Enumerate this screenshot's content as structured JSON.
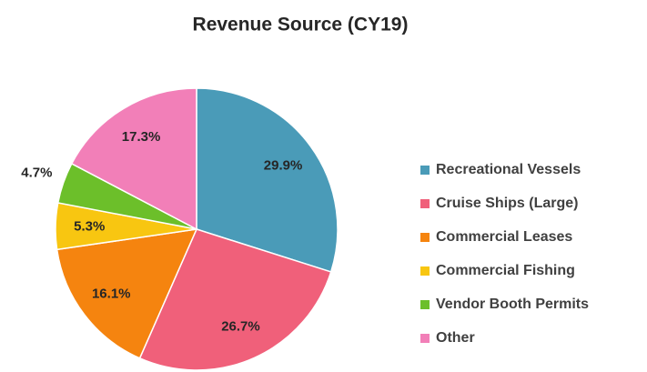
{
  "chart_data": {
    "type": "pie",
    "title": "Revenue Source (CY19)",
    "categories": [
      "Recreational Vessels",
      "Cruise Ships (Large)",
      "Commercial Leases",
      "Commercial Fishing",
      "Vendor Booth Permits",
      "Other"
    ],
    "values": [
      29.9,
      26.7,
      16.1,
      5.3,
      4.7,
      17.3
    ],
    "value_labels": [
      "29.9%",
      "26.7%",
      "16.1%",
      "5.3%",
      "4.7%",
      "17.3%"
    ],
    "colors": [
      "#4a9bb8",
      "#f0607a",
      "#f5840f",
      "#f8c611",
      "#6cbf2a",
      "#f27fb8"
    ],
    "legend": "right"
  }
}
